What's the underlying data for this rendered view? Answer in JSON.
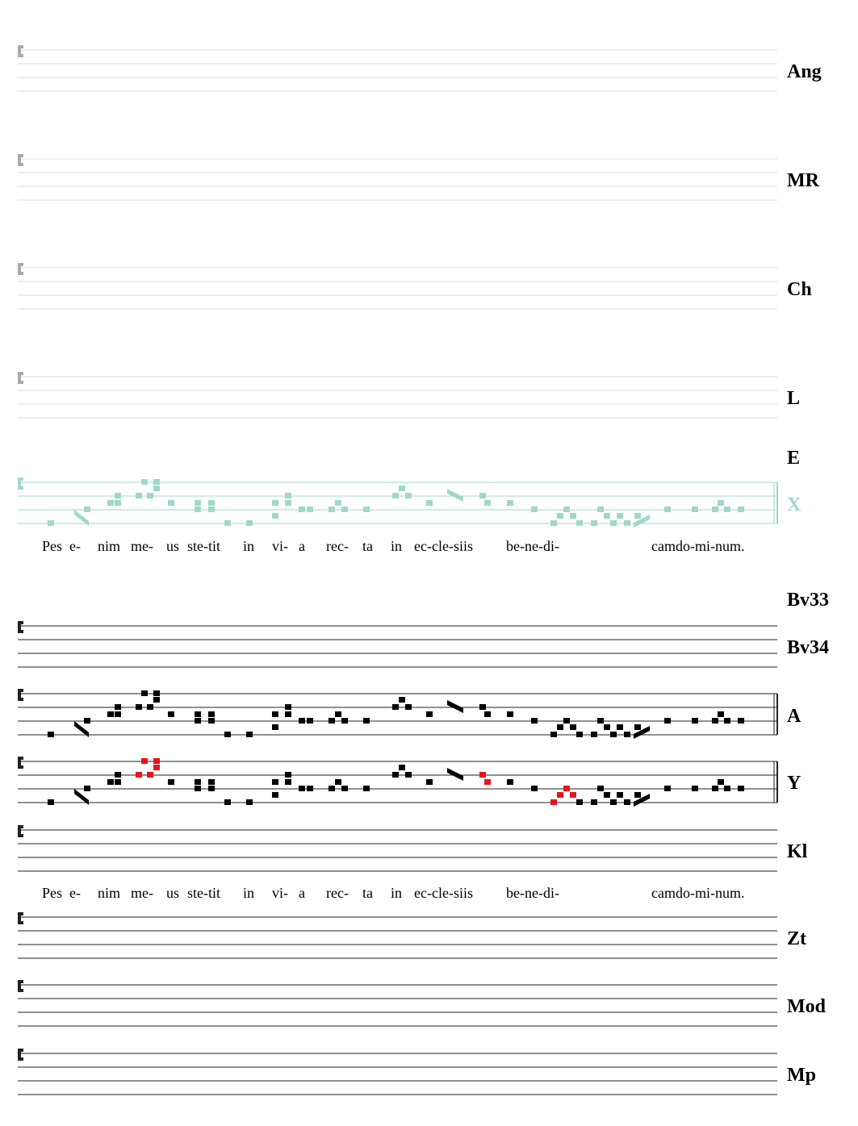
{
  "staves": [
    {
      "label": "Ang"
    },
    {
      "label": "MR"
    },
    {
      "label": "Ch"
    },
    {
      "label": "L"
    },
    {
      "label": "E"
    },
    {
      "label": "X"
    },
    {
      "label": "Bv33"
    },
    {
      "label": "Bv34"
    },
    {
      "label": "A"
    },
    {
      "label": "Y"
    },
    {
      "label": "Kl"
    },
    {
      "label": "Zt"
    },
    {
      "label": "Mod"
    },
    {
      "label": "Mp"
    }
  ],
  "lyrics": [
    [
      "Pes",
      "e-",
      "nim",
      "me-",
      "us",
      "ste-tit",
      "in",
      "vi-",
      "a",
      "rec-",
      "ta",
      "in",
      "ec-cle-siis",
      "be-ne-di-",
      "cam",
      "do-mi-num."
    ],
    [
      "Pes",
      "e-",
      "nim",
      "me-",
      "us",
      "ste-tit",
      "in",
      "vi-",
      "a",
      "rec-",
      "ta",
      "in",
      "ec-cle-siis",
      "be-ne-di-",
      "cam",
      "do-mi-num."
    ]
  ]
}
